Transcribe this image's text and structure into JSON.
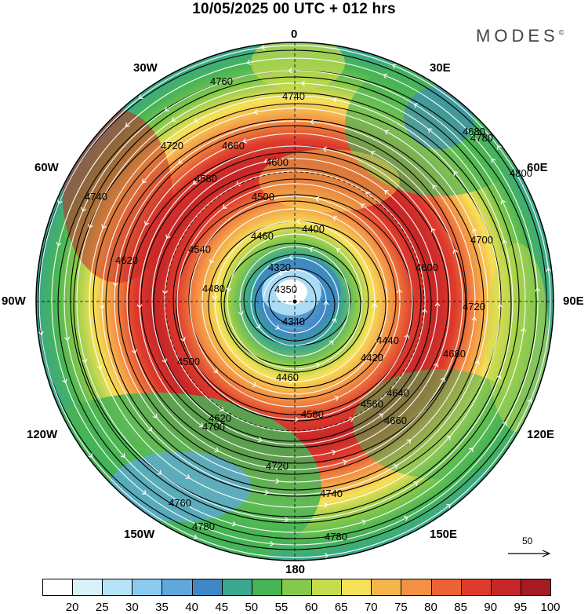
{
  "header": {
    "title": "10/05/2025  00 UTC  + 012 hrs",
    "brand": "MODES",
    "brand_mark": "©"
  },
  "map": {
    "projection": "polar stereographic (south pole centered)",
    "longitude_labels": {
      "top": "0",
      "top_right": "30E",
      "upper_right": "60E",
      "right": "90E",
      "lower_right": "120E",
      "bottom_right": "150E",
      "bottom": "180",
      "bottom_left": "150W",
      "lower_left": "120W",
      "left": "90W",
      "upper_left": "60W",
      "top_left": "30W"
    },
    "contour_labels": [
      "4760",
      "4740",
      "4680",
      "4600",
      "4660",
      "4720",
      "4780",
      "4800",
      "4700",
      "4580",
      "4500",
      "4400",
      "4460",
      "4540",
      "4620",
      "4320",
      "4350",
      "4480",
      "4600",
      "4740",
      "4680",
      "4720",
      "4340",
      "4420",
      "4440",
      "4500",
      "4460",
      "4640",
      "4620",
      "4580",
      "4560",
      "4660",
      "4700",
      "4720",
      "4760",
      "4780",
      "4740",
      "4780"
    ],
    "vector_reference": {
      "value": "50",
      "symbol": "arrow"
    }
  },
  "colorbar": {
    "labels": [
      "20",
      "25",
      "30",
      "35",
      "40",
      "45",
      "50",
      "55",
      "60",
      "65",
      "70",
      "75",
      "80",
      "85",
      "90",
      "95",
      "100"
    ],
    "colors": [
      "#ffffff",
      "#d8f2fc",
      "#b5e3f8",
      "#8ccbf0",
      "#5ea8dc",
      "#3f88c4",
      "#3aa78f",
      "#47b455",
      "#86c94a",
      "#c7dc4d",
      "#f6e157",
      "#f6b54a",
      "#f39044",
      "#ed6234",
      "#de3a2c",
      "#c62628",
      "#a61a23"
    ]
  }
}
